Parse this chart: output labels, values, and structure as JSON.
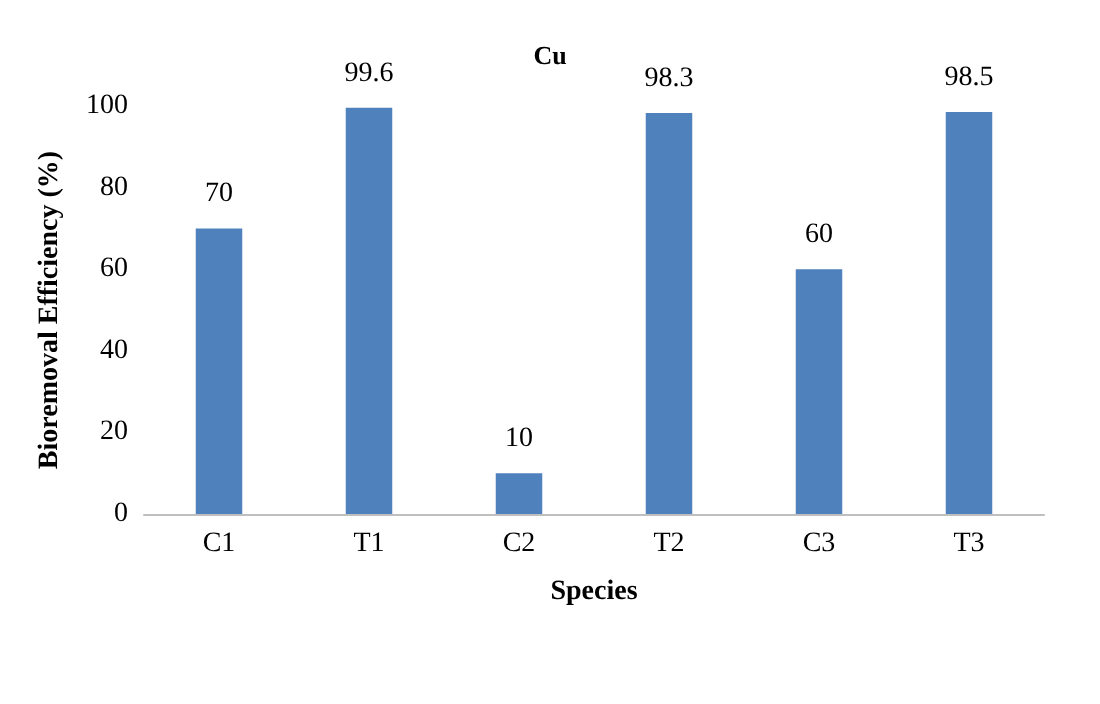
{
  "chart_data": {
    "type": "bar",
    "title": "Cu",
    "xlabel": "Species",
    "ylabel": "Bioremoval Efficiency (%)",
    "categories": [
      "C1",
      "T1",
      "C2",
      "T2",
      "C3",
      "T3"
    ],
    "values": [
      70,
      99.6,
      10,
      98.3,
      60,
      98.5
    ],
    "color": "#4f81bd",
    "data_labels": true,
    "ylim": [
      0,
      100
    ],
    "yticks": [
      0,
      20,
      40,
      60,
      80,
      100
    ],
    "grid": false
  }
}
